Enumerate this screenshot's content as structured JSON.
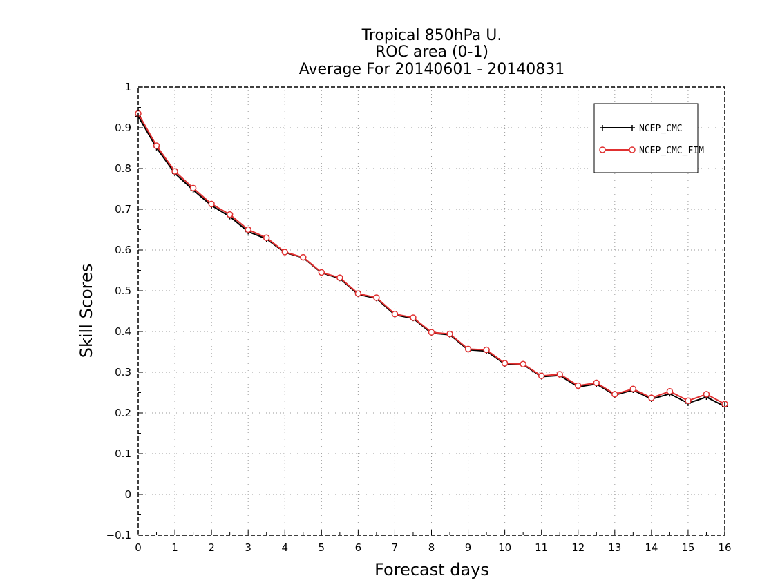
{
  "chart_data": {
    "type": "line",
    "title_lines": [
      "Tropical 850hPa U.",
      "ROC area (0-1)",
      "Average For 20140601 - 20140831"
    ],
    "xlabel": "Forecast days",
    "ylabel": "Skill Scores",
    "xlim": [
      0,
      16
    ],
    "ylim": [
      -0.1,
      1
    ],
    "x_ticks": [
      0,
      1,
      2,
      3,
      4,
      5,
      6,
      7,
      8,
      9,
      10,
      11,
      12,
      13,
      14,
      15,
      16
    ],
    "y_ticks": [
      -0.1,
      0,
      0.1,
      0.2,
      0.3,
      0.4,
      0.5,
      0.6,
      0.7,
      0.8,
      0.9,
      1
    ],
    "y_tick_labels": [
      "−0.1",
      "0",
      "0.1",
      "0.2",
      "0.3",
      "0.4",
      "0.5",
      "0.6",
      "0.7",
      "0.8",
      "0.9",
      "1"
    ],
    "grid": true,
    "legend_position": "top-right",
    "x": [
      0,
      0.5,
      1,
      1.5,
      2,
      2.5,
      3,
      3.5,
      4,
      4.5,
      5,
      5.5,
      6,
      6.5,
      7,
      7.5,
      8,
      8.5,
      9,
      9.5,
      10,
      10.5,
      11,
      11.5,
      12,
      12.5,
      13,
      13.5,
      14,
      14.5,
      15,
      15.5,
      16
    ],
    "series": [
      {
        "name": "NCEP_CMC",
        "color": "#000000",
        "marker": "plus",
        "values": [
          0.928,
          0.851,
          0.788,
          0.747,
          0.709,
          0.682,
          0.645,
          0.627,
          0.594,
          0.581,
          0.544,
          0.53,
          0.491,
          0.481,
          0.441,
          0.432,
          0.396,
          0.392,
          0.355,
          0.352,
          0.32,
          0.319,
          0.289,
          0.292,
          0.264,
          0.271,
          0.244,
          0.256,
          0.234,
          0.247,
          0.224,
          0.239,
          0.216
        ]
      },
      {
        "name": "NCEP_CMC_FIM",
        "color": "#e03030",
        "marker": "circle",
        "values": [
          0.935,
          0.856,
          0.793,
          0.752,
          0.713,
          0.687,
          0.65,
          0.63,
          0.595,
          0.582,
          0.545,
          0.532,
          0.493,
          0.483,
          0.443,
          0.434,
          0.398,
          0.394,
          0.357,
          0.355,
          0.322,
          0.32,
          0.291,
          0.295,
          0.267,
          0.274,
          0.246,
          0.259,
          0.237,
          0.253,
          0.23,
          0.246,
          0.222
        ]
      }
    ]
  }
}
